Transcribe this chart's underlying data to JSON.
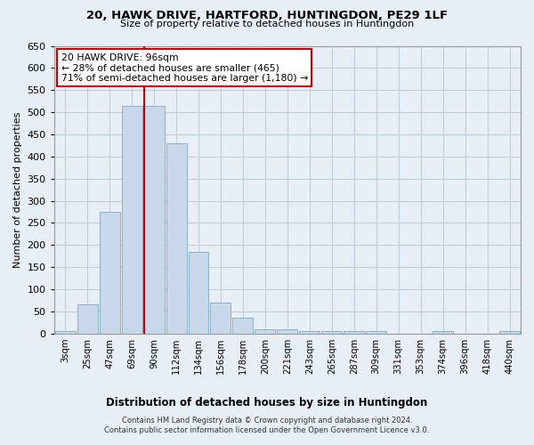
{
  "title": "20, HAWK DRIVE, HARTFORD, HUNTINGDON, PE29 1LF",
  "subtitle": "Size of property relative to detached houses in Huntingdon",
  "xlabel": "Distribution of detached houses by size in Huntingdon",
  "ylabel": "Number of detached properties",
  "footer_line1": "Contains HM Land Registry data © Crown copyright and database right 2024.",
  "footer_line2": "Contains public sector information licensed under the Open Government Licence v3.0.",
  "annotation_line1": "20 HAWK DRIVE: 96sqm",
  "annotation_line2": "← 28% of detached houses are smaller (465)",
  "annotation_line3": "71% of semi-detached houses are larger (1,180) →",
  "bar_categories": [
    "3sqm",
    "25sqm",
    "47sqm",
    "69sqm",
    "90sqm",
    "112sqm",
    "134sqm",
    "156sqm",
    "178sqm",
    "200sqm",
    "221sqm",
    "243sqm",
    "265sqm",
    "287sqm",
    "309sqm",
    "331sqm",
    "353sqm",
    "374sqm",
    "396sqm",
    "418sqm",
    "440sqm"
  ],
  "bar_values": [
    5,
    65,
    275,
    515,
    515,
    430,
    185,
    70,
    35,
    10,
    10,
    5,
    5,
    5,
    5,
    0,
    0,
    5,
    0,
    0,
    5
  ],
  "bar_color": "#c8d8ea",
  "bar_edge_color": "#8ab0cc",
  "redline_color": "#cc0000",
  "annotation_box_edge": "#cc0000",
  "annotation_box_fill": "#ffffff",
  "grid_color": "#c0ccd8",
  "background_color": "#e8eef5",
  "ylim": [
    0,
    650
  ],
  "yticks": [
    0,
    50,
    100,
    150,
    200,
    250,
    300,
    350,
    400,
    450,
    500,
    550,
    600,
    650
  ],
  "redline_x": 3.57
}
